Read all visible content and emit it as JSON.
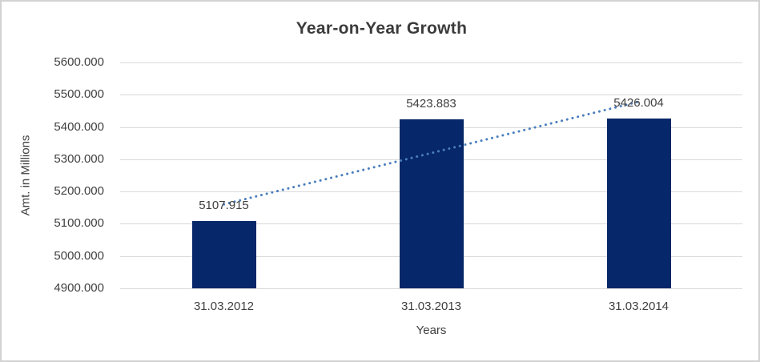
{
  "chart_data": {
    "type": "bar",
    "title": "Year-on-Year Growth",
    "xlabel": "Years",
    "ylabel": "Amt. in Millions",
    "categories": [
      "31.03.2012",
      "31.03.2013",
      "31.03.2014"
    ],
    "values": [
      5107.915,
      5423.883,
      5426.004
    ],
    "data_labels": [
      "5107.915",
      "5423.883",
      "5426.004"
    ],
    "y_tick_labels": [
      "5600.000",
      "5500.000",
      "5400.000",
      "5300.000",
      "5200.000",
      "5100.000",
      "5000.000",
      "4900.000"
    ],
    "y_tick_values": [
      5600,
      5500,
      5400,
      5300,
      5200,
      5100,
      5000,
      4900
    ],
    "ylim": [
      4900,
      5600
    ],
    "grid": true,
    "legend": "none",
    "trendline": {
      "type": "linear",
      "style": "dotted"
    },
    "colors": {
      "bar": "#062769",
      "trendline": "#4a7ebd",
      "gridline": "#d9d9d9",
      "axis_line": "#d9d9d9",
      "title_text": "#3b3b3b",
      "label_text": "#404040"
    }
  }
}
